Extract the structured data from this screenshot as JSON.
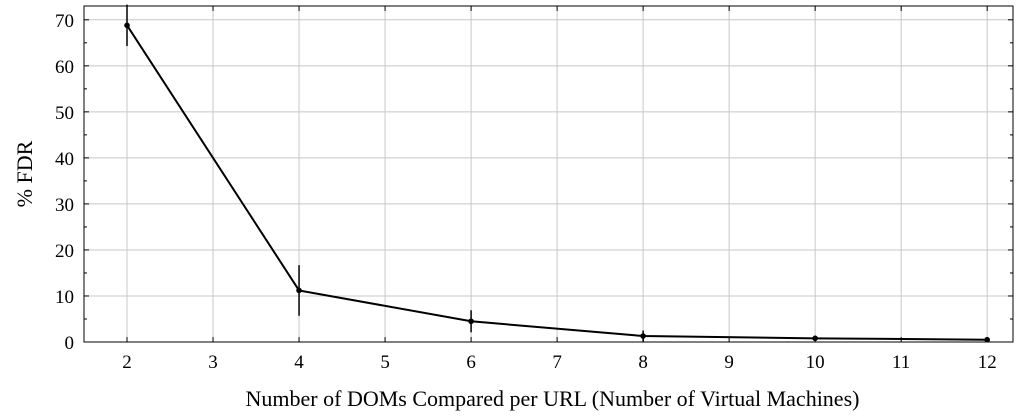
{
  "chart_data": {
    "type": "line",
    "title": "",
    "xlabel": "Number of DOMs Compared per URL (Number of Virtual Machines)",
    "ylabel": "% FDR",
    "xlim": [
      1.5,
      12.3
    ],
    "ylim": [
      0,
      73
    ],
    "xticks": [
      2,
      3,
      4,
      5,
      6,
      7,
      8,
      9,
      10,
      11,
      12
    ],
    "yticks": [
      0,
      10,
      20,
      30,
      40,
      50,
      60,
      70
    ],
    "grid": true,
    "legend": "none",
    "series": [
      {
        "x": [
          2,
          4,
          6,
          8,
          10,
          12
        ],
        "y": [
          68.8,
          11.2,
          4.5,
          1.3,
          0.8,
          0.5
        ],
        "error": [
          4.5,
          5.5,
          2.4,
          1.2,
          0.6,
          0.2
        ],
        "color": "#000000"
      }
    ]
  }
}
